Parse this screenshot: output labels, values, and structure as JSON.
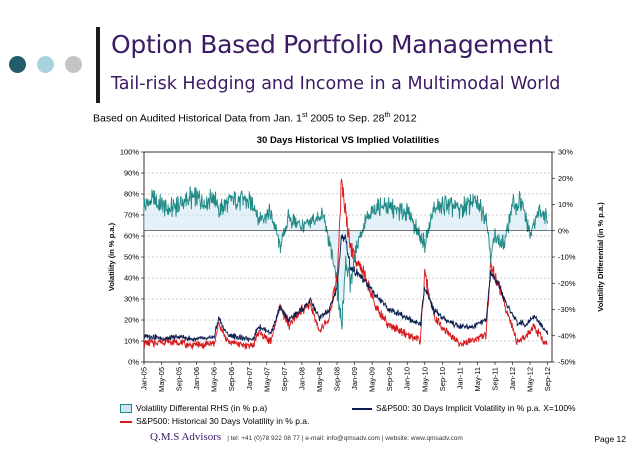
{
  "slide": {
    "title": "Option Based Portfolio Management",
    "subtitle": "Tail-risk Hedging and Income in a Multimodal World",
    "basis_before": "Based on Audited Historical Data from Jan. 1",
    "basis_sup1": "st",
    "basis_middle": " 2005 to Sep. 28",
    "basis_sup2": "th",
    "basis_after": " 2012",
    "dot_colors": [
      "#245d6a",
      "#a9d3dc",
      "#c4c4c4"
    ],
    "brand_color": "#3b1b63"
  },
  "footer": {
    "brand": "Q.M.S Advisors",
    "contact": "| tel: +41 (0)78 922 08 77 | e-mail: info@qmsadv.com | website: www.qmsadv.com"
  },
  "page_number": "Page 12",
  "chart_data": {
    "type": "line",
    "title": "30 Days Historical VS Implied Volatilities",
    "ylabel": "Volatility (in % p.a.)",
    "y2label": "Volatility Differential (in % p.a.)",
    "ylim": [
      0,
      100
    ],
    "y2lim": [
      -50,
      30
    ],
    "yticks": [
      "0%",
      "10%",
      "20%",
      "30%",
      "40%",
      "50%",
      "60%",
      "70%",
      "80%",
      "90%",
      "100%"
    ],
    "y2ticks": [
      "-50%",
      "-40%",
      "-30%",
      "-20%",
      "-10%",
      "0%",
      "10%",
      "20%",
      "30%"
    ],
    "x_categories": [
      "Jan-05",
      "May-05",
      "Sep-05",
      "Jan-06",
      "May-06",
      "Sep-06",
      "Jan-07",
      "May-07",
      "Sep-07",
      "Jan-08",
      "May-08",
      "Sep-08",
      "Jan-09",
      "May-09",
      "Sep-09",
      "Jan-10",
      "May-10",
      "Sep-10",
      "Jan-11",
      "May-11",
      "Sep-11",
      "Jan-12",
      "May-12",
      "Sep-12"
    ],
    "grid": true,
    "legend_position": "bottom",
    "series": [
      {
        "name": "Volatility Differental RHS (in % p.a)",
        "axis": "right",
        "color": "#1f8a86",
        "style": "area",
        "x": [
          "2005-01",
          "2005-03",
          "2005-06",
          "2005-09",
          "2005-12",
          "2006-03",
          "2006-05",
          "2006-06",
          "2006-09",
          "2006-12",
          "2007-02",
          "2007-03",
          "2007-06",
          "2007-08",
          "2007-10",
          "2008-01",
          "2008-03",
          "2008-06",
          "2008-09",
          "2008-10",
          "2008-11",
          "2008-12",
          "2009-02",
          "2009-04",
          "2009-07",
          "2009-10",
          "2010-01",
          "2010-05",
          "2010-07",
          "2010-10",
          "2011-01",
          "2011-04",
          "2011-07",
          "2011-08",
          "2011-09",
          "2011-11",
          "2012-01",
          "2012-03",
          "2012-05",
          "2012-07",
          "2012-09"
        ],
        "values": [
          10,
          12,
          8,
          10,
          13,
          11,
          14,
          8,
          12,
          12,
          10,
          4,
          7,
          -6,
          5,
          2,
          3,
          6,
          -20,
          -36,
          -10,
          -20,
          -2,
          5,
          10,
          8,
          7,
          -5,
          8,
          10,
          8,
          11,
          6,
          -10,
          -2,
          -6,
          10,
          11,
          -2,
          8,
          5
        ]
      },
      {
        "name": "S&P500: 30 Days Implicit Volatility in % p.a. X=100%",
        "axis": "left",
        "color": "#0b1d4f",
        "style": "line",
        "x": [
          "2005-01",
          "2005-03",
          "2005-06",
          "2005-09",
          "2005-12",
          "2006-03",
          "2006-05",
          "2006-06",
          "2006-08",
          "2006-12",
          "2007-02",
          "2007-03",
          "2007-06",
          "2007-08",
          "2007-10",
          "2008-01",
          "2008-03",
          "2008-05",
          "2008-07",
          "2008-09",
          "2008-10",
          "2008-11",
          "2008-12",
          "2009-03",
          "2009-06",
          "2009-09",
          "2009-12",
          "2010-04",
          "2010-05",
          "2010-07",
          "2010-10",
          "2011-01",
          "2011-04",
          "2011-07",
          "2011-08",
          "2011-10",
          "2011-12",
          "2012-02",
          "2012-04",
          "2012-06",
          "2012-08",
          "2012-09"
        ],
        "values": [
          12,
          12,
          11,
          12,
          11,
          11,
          12,
          21,
          13,
          11,
          11,
          17,
          14,
          26,
          20,
          25,
          29,
          21,
          24,
          35,
          60,
          58,
          45,
          40,
          31,
          25,
          22,
          18,
          36,
          25,
          20,
          17,
          17,
          20,
          43,
          35,
          26,
          19,
          18,
          22,
          16,
          14
        ]
      },
      {
        "name": "S&P500: Historical 30 Days Volatility in % p.a.",
        "axis": "left",
        "color": "#d7191c",
        "style": "line",
        "x": [
          "2005-01",
          "2005-03",
          "2005-06",
          "2005-09",
          "2005-12",
          "2006-03",
          "2006-05",
          "2006-06",
          "2006-08",
          "2006-12",
          "2007-02",
          "2007-03",
          "2007-06",
          "2007-08",
          "2007-10",
          "2008-01",
          "2008-03",
          "2008-05",
          "2008-07",
          "2008-09",
          "2008-10",
          "2008-11",
          "2008-12",
          "2009-03",
          "2009-06",
          "2009-09",
          "2009-12",
          "2010-04",
          "2010-05",
          "2010-07",
          "2010-10",
          "2011-01",
          "2011-04",
          "2011-07",
          "2011-08",
          "2011-10",
          "2011-12",
          "2012-02",
          "2012-04",
          "2012-06",
          "2012-08",
          "2012-09"
        ],
        "values": [
          9,
          9,
          10,
          9,
          8,
          8,
          9,
          18,
          10,
          8,
          8,
          14,
          10,
          27,
          17,
          25,
          27,
          15,
          20,
          40,
          86,
          70,
          55,
          43,
          25,
          17,
          14,
          10,
          42,
          22,
          14,
          9,
          10,
          13,
          46,
          36,
          22,
          10,
          12,
          17,
          10,
          8
        ]
      }
    ]
  }
}
